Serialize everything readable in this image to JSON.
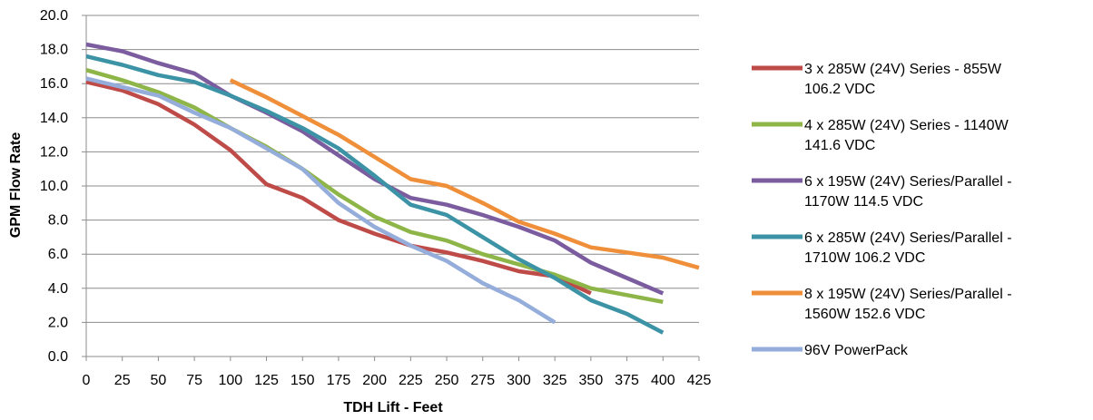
{
  "chart_data": {
    "type": "line",
    "xlabel": "TDH Lift - Feet",
    "ylabel": "GPM Flow Rate",
    "xlim": [
      0,
      425
    ],
    "ylim": [
      0,
      20
    ],
    "x_ticks": [
      "0",
      "25",
      "50",
      "75",
      "100",
      "125",
      "150",
      "175",
      "200",
      "225",
      "250",
      "275",
      "300",
      "325",
      "350",
      "375",
      "400",
      "425"
    ],
    "y_ticks": [
      "0.0",
      "2.0",
      "4.0",
      "6.0",
      "8.0",
      "10.0",
      "12.0",
      "14.0",
      "16.0",
      "18.0",
      "20.0"
    ],
    "grid": "horizontal",
    "legend_position": "right",
    "series": [
      {
        "name": "3 x 285W (24V) Series - 855W 106.2 VDC",
        "legend_lines": [
          "3 x 285W (24V) Series - 855W",
          "106.2 VDC"
        ],
        "color": "#BE4B48",
        "x": [
          0,
          25,
          50,
          75,
          100,
          125,
          150,
          175,
          200,
          225,
          250,
          275,
          300,
          325,
          350
        ],
        "values": [
          16.1,
          15.6,
          14.8,
          13.6,
          12.1,
          10.1,
          9.3,
          8.0,
          7.2,
          6.5,
          6.1,
          5.6,
          5.0,
          4.7,
          3.7
        ]
      },
      {
        "name": "4 x 285W (24V) Series - 1140W 141.6 VDC",
        "legend_lines": [
          "4 x 285W (24V) Series - 1140W",
          "141.6 VDC"
        ],
        "color": "#8EB548",
        "x": [
          0,
          25,
          50,
          75,
          100,
          125,
          150,
          175,
          200,
          225,
          250,
          275,
          300,
          325,
          350,
          375,
          400
        ],
        "values": [
          16.8,
          16.2,
          15.5,
          14.6,
          13.4,
          12.3,
          11.0,
          9.5,
          8.2,
          7.3,
          6.8,
          6.0,
          5.4,
          4.8,
          4.0,
          3.6,
          3.2
        ]
      },
      {
        "name": "6 x 195W (24V) Series/Parallel - 1170W 114.5 VDC",
        "legend_lines": [
          "6 x 195W (24V) Series/Parallel -",
          "1170W 114.5 VDC"
        ],
        "color": "#7A5C9F",
        "x": [
          0,
          25,
          50,
          75,
          100,
          125,
          150,
          175,
          200,
          225,
          250,
          275,
          300,
          325,
          350,
          375,
          400
        ],
        "values": [
          18.3,
          17.9,
          17.2,
          16.6,
          15.3,
          14.3,
          13.2,
          11.8,
          10.4,
          9.3,
          8.9,
          8.3,
          7.6,
          6.8,
          5.5,
          4.6,
          3.7
        ]
      },
      {
        "name": "6 x 285W (24V) Series/Parallel - 1710W 106.2 VDC",
        "legend_lines": [
          "6 x 285W (24V) Series/Parallel -",
          "1710W 106.2 VDC"
        ],
        "color": "#3C93A6",
        "x": [
          0,
          25,
          50,
          75,
          100,
          125,
          150,
          175,
          200,
          225,
          250,
          275,
          300,
          325,
          350,
          375,
          400
        ],
        "values": [
          17.6,
          17.1,
          16.5,
          16.1,
          15.3,
          14.4,
          13.4,
          12.2,
          10.6,
          8.9,
          8.3,
          7.0,
          5.7,
          4.6,
          3.3,
          2.5,
          1.4
        ]
      },
      {
        "name": "8 x 195W (24V) Series/Parallel - 1560W 152.6 VDC",
        "legend_lines": [
          "8 x 195W (24V) Series/Parallel -",
          "1560W 152.6 VDC"
        ],
        "color": "#F08F39",
        "x": [
          100,
          125,
          150,
          175,
          200,
          225,
          250,
          275,
          300,
          325,
          350,
          375,
          400,
          425
        ],
        "values": [
          16.2,
          15.2,
          14.1,
          13.0,
          11.7,
          10.4,
          10.0,
          9.0,
          7.9,
          7.2,
          6.4,
          6.1,
          5.8,
          5.2
        ]
      },
      {
        "name": "96V PowerPack",
        "legend_lines": [
          "96V PowerPack"
        ],
        "color": "#95ADDB",
        "x": [
          0,
          25,
          50,
          75,
          100,
          125,
          150,
          175,
          200,
          225,
          250,
          275,
          300,
          325
        ],
        "values": [
          16.3,
          15.8,
          15.3,
          14.3,
          13.4,
          12.2,
          11.0,
          9.0,
          7.6,
          6.5,
          5.6,
          4.3,
          3.3,
          2.0
        ]
      }
    ]
  }
}
